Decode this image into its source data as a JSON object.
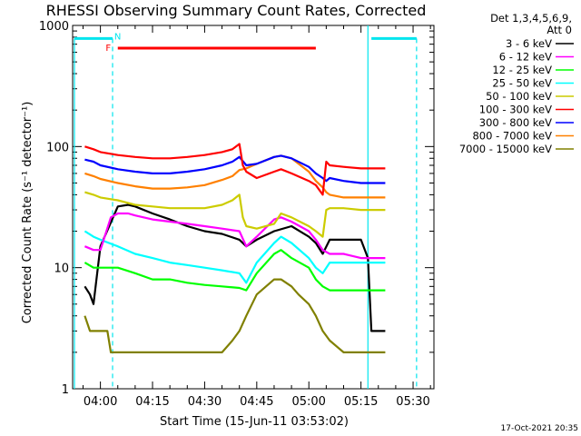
{
  "chart_data": {
    "type": "line",
    "title": "RHESSI Observing Summary Count Rates, Corrected",
    "xlabel": "Start Time (15-Jun-11 03:53:02)",
    "ylabel": "Corrected Count Rate (s⁻¹ detector⁻¹)",
    "yscale": "log",
    "ylim": [
      1,
      1000
    ],
    "xlim_minutes": [
      -8,
      36
    ],
    "x_tick_labels": [
      "04:00",
      "04:15",
      "04:30",
      "04:45",
      "05:00",
      "05:15",
      "05:30"
    ],
    "x_ticks_minutes": [
      0,
      15,
      30,
      45,
      60,
      75,
      90
    ],
    "y_tick_labels": [
      "1",
      "10",
      "100",
      "1000"
    ],
    "y_ticks": [
      1,
      10,
      100,
      1000
    ],
    "legend_header": [
      "Det 1,3,4,5,6,9,",
      "Att 0"
    ],
    "legend_placement": "right",
    "timestamp": "17-Oct-2021 20:35",
    "flag_labels": [
      "F",
      "N"
    ],
    "series": [
      {
        "name": "3 - 6 keV",
        "color": "#000000",
        "x": [
          -4.5,
          -3,
          -2,
          0,
          5,
          8,
          10,
          15,
          20,
          25,
          30,
          35,
          40,
          42,
          45,
          50,
          55,
          60,
          62,
          64,
          66,
          70,
          75,
          77,
          78,
          80,
          82
        ],
        "y": [
          7,
          6,
          5,
          15,
          32,
          33,
          32,
          28,
          25,
          22,
          20,
          19,
          17,
          15,
          17,
          20,
          22,
          18,
          16,
          13,
          17,
          17,
          17,
          12,
          3,
          3,
          3
        ]
      },
      {
        "name": "6 - 12 keV",
        "color": "#ff00ff",
        "x": [
          -4.5,
          -2,
          0,
          3,
          5,
          8,
          10,
          15,
          20,
          25,
          30,
          35,
          40,
          42,
          45,
          50,
          52,
          55,
          60,
          62,
          64,
          66,
          70,
          75,
          78,
          82
        ],
        "y": [
          15,
          14,
          14,
          26,
          28,
          28,
          27,
          25,
          24,
          23,
          22,
          21,
          20,
          15,
          18,
          25,
          26,
          24,
          20,
          17,
          14,
          13,
          13,
          12,
          12,
          12
        ]
      },
      {
        "name": "12 - 25 keV",
        "color": "#00ff00",
        "x": [
          -4.5,
          -2,
          0,
          5,
          10,
          15,
          20,
          25,
          30,
          35,
          40,
          42,
          45,
          50,
          52,
          55,
          60,
          62,
          64,
          66,
          70,
          75,
          78,
          82
        ],
        "y": [
          11,
          10,
          10,
          10,
          9,
          8,
          8,
          7.5,
          7.2,
          7,
          6.8,
          6.5,
          9,
          13,
          14,
          12,
          10,
          8,
          7,
          6.5,
          6.5,
          6.5,
          6.5,
          6.5
        ]
      },
      {
        "name": "25 - 50 keV",
        "color": "#00ffff",
        "x": [
          -4.5,
          -2,
          0,
          5,
          10,
          15,
          20,
          25,
          30,
          35,
          40,
          42,
          45,
          50,
          52,
          55,
          60,
          62,
          64,
          66,
          70,
          75,
          78,
          82
        ],
        "y": [
          20,
          18,
          17,
          15,
          13,
          12,
          11,
          10.5,
          10,
          9.5,
          9,
          7.5,
          11,
          16,
          18,
          16,
          12,
          10,
          9,
          11,
          11,
          11,
          11,
          11
        ]
      },
      {
        "name": "50 - 100 keV",
        "color": "#cccc00",
        "x": [
          -4.5,
          -2,
          0,
          5,
          10,
          15,
          20,
          25,
          30,
          35,
          38,
          40,
          41,
          42,
          45,
          50,
          52,
          55,
          60,
          62,
          64,
          65,
          66,
          70,
          75,
          78,
          82
        ],
        "y": [
          42,
          40,
          38,
          36,
          33,
          32,
          31,
          31,
          31,
          33,
          36,
          40,
          26,
          22,
          21,
          23,
          28,
          26,
          22,
          20,
          18,
          30,
          31,
          31,
          30,
          30,
          30
        ]
      },
      {
        "name": "100 - 300 keV",
        "color": "#ff0000",
        "x": [
          -4.5,
          -2,
          0,
          5,
          10,
          15,
          20,
          25,
          30,
          35,
          38,
          40,
          41,
          42,
          45,
          50,
          52,
          55,
          60,
          62,
          64,
          65,
          66,
          70,
          75,
          78,
          82
        ],
        "y": [
          100,
          95,
          90,
          85,
          82,
          80,
          80,
          82,
          85,
          90,
          95,
          105,
          70,
          62,
          55,
          62,
          65,
          60,
          52,
          48,
          40,
          75,
          70,
          68,
          66,
          66,
          66
        ]
      },
      {
        "name": "300 - 800 keV",
        "color": "#0000ff",
        "x": [
          -4.5,
          -2,
          0,
          5,
          10,
          15,
          20,
          25,
          30,
          35,
          38,
          40,
          42,
          45,
          50,
          52,
          55,
          60,
          62,
          64,
          65,
          66,
          70,
          75,
          78,
          82
        ],
        "y": [
          78,
          75,
          70,
          65,
          62,
          60,
          60,
          62,
          65,
          70,
          75,
          82,
          70,
          72,
          82,
          84,
          80,
          68,
          60,
          55,
          52,
          55,
          52,
          50,
          50,
          50
        ]
      },
      {
        "name": "800 - 7000 keV",
        "color": "#ff8000",
        "x": [
          -4.5,
          -2,
          0,
          5,
          10,
          15,
          20,
          25,
          30,
          35,
          38,
          40,
          42,
          45,
          50,
          52,
          55,
          60,
          62,
          64,
          65,
          66,
          70,
          75,
          78,
          82
        ],
        "y": [
          60,
          57,
          54,
          50,
          47,
          45,
          45,
          46,
          48,
          53,
          57,
          64,
          66,
          72,
          82,
          84,
          80,
          62,
          52,
          46,
          42,
          40,
          38,
          38,
          38,
          38
        ]
      },
      {
        "name": "7000 - 15000 keV",
        "color": "#808000",
        "x": [
          -4.5,
          -3,
          0,
          2,
          3,
          5,
          10,
          15,
          20,
          25,
          30,
          35,
          38,
          40,
          42,
          45,
          50,
          52,
          55,
          57,
          60,
          62,
          64,
          66,
          70,
          75,
          78,
          82
        ],
        "y": [
          4,
          3,
          3,
          3,
          2,
          2,
          2,
          2,
          2,
          2,
          2,
          2,
          2.5,
          3,
          4,
          6,
          8,
          8,
          7,
          6,
          5,
          4,
          3,
          2.5,
          2,
          2,
          2,
          2
        ]
      }
    ],
    "flags": {
      "saa_left": {
        "start": -8,
        "end": 5
      },
      "saa_right": {
        "start": 76,
        "end": 88
      },
      "flare_bar": {
        "start": 6,
        "end": 62
      }
    }
  }
}
